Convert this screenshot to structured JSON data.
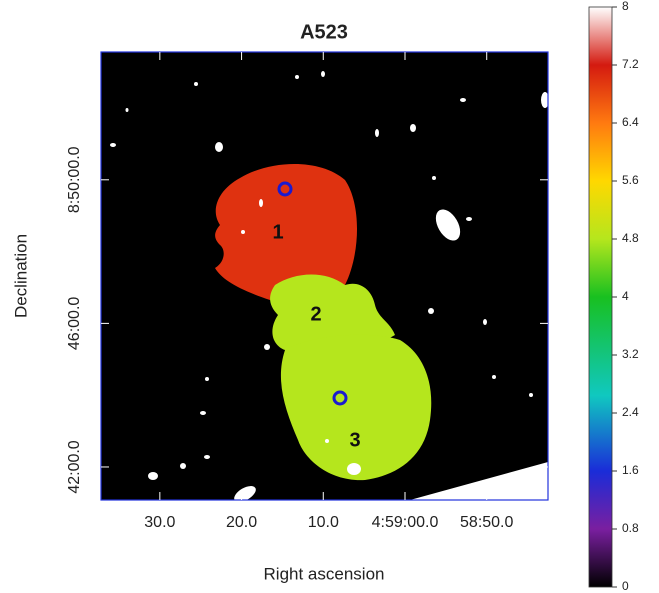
{
  "chart_data": {
    "type": "image",
    "title": "A523",
    "x_label": "Right ascension",
    "y_label": "Declination",
    "xlim": [
      37.2,
      -17.5
    ],
    "xticks": [
      {
        "value": 30,
        "label": "30.0"
      },
      {
        "value": 20,
        "label": "20.0"
      },
      {
        "value": 10,
        "label": "10.0"
      },
      {
        "value": 0,
        "label": "4:59:00.0"
      },
      {
        "value": -10,
        "label": "58:50.0"
      }
    ],
    "ylim": [
      41.08,
      53.56
    ],
    "yticks": [
      {
        "value": 42,
        "label": "42:00.0"
      },
      {
        "value": 46,
        "label": "46:00.0"
      },
      {
        "value": 50,
        "label": "8:50:00.0"
      }
    ],
    "regions": [
      {
        "label": "1",
        "value": 7.0
      },
      {
        "label": "2",
        "value": 4.8
      },
      {
        "label": "3",
        "value": 4.8
      }
    ],
    "colorbar": {
      "lim": [
        0,
        8
      ],
      "ticks": [
        0,
        0.8,
        1.6,
        2.4,
        3.2,
        4,
        4.8,
        5.6,
        6.4,
        7.2,
        8
      ]
    }
  }
}
